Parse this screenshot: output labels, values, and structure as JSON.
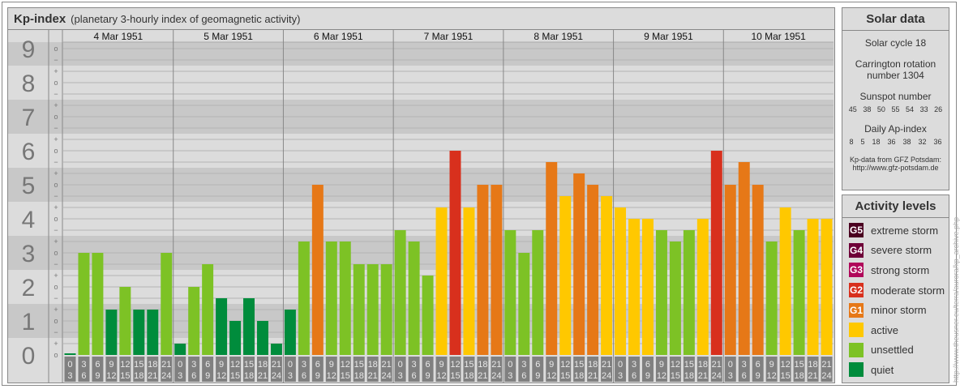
{
  "title": {
    "main": "Kp-index",
    "sub": "(planetary 3-hourly index of geomagnetic activity)"
  },
  "chart_data": {
    "type": "bar",
    "title": "Kp-index",
    "ylim": [
      0,
      9
    ],
    "y_tick_labels": [
      "0",
      "1",
      "2",
      "3",
      "4",
      "5",
      "6",
      "7",
      "8",
      "9"
    ],
    "sub_tick_labels": {
      "minus": "−",
      "zero": "o",
      "plus": "+"
    },
    "days": [
      "4 Mar 1951",
      "5 Mar 1951",
      "6 Mar 1951",
      "7 Mar 1951",
      "8 Mar 1951",
      "9 Mar 1951",
      "10 Mar 1951"
    ],
    "intervals": [
      [
        "0",
        "3"
      ],
      [
        "3",
        "6"
      ],
      [
        "6",
        "9"
      ],
      [
        "9",
        "12"
      ],
      [
        "12",
        "15"
      ],
      [
        "15",
        "18"
      ],
      [
        "18",
        "21"
      ],
      [
        "21",
        "24"
      ]
    ],
    "values": [
      [
        "0o",
        "3o",
        "3o",
        "1+",
        "2o",
        "1+",
        "1+",
        "3o"
      ],
      [
        "0+",
        "2o",
        "3-",
        "2-",
        "1o",
        "2-",
        "1o",
        "0+"
      ],
      [
        "1+",
        "3+",
        "5o",
        "3+",
        "3+",
        "3-",
        "3-",
        "3-"
      ],
      [
        "4-",
        "3+",
        "2+",
        "4+",
        "6o",
        "4+",
        "5o",
        "5o"
      ],
      [
        "4-",
        "3o",
        "4-",
        "6-",
        "5-",
        "5+",
        "5o",
        "5-"
      ],
      [
        "4+",
        "4o",
        "4o",
        "4-",
        "3+",
        "4-",
        "4o",
        "6o"
      ],
      [
        "5o",
        "6-",
        "5o",
        "3+",
        "4+",
        "4-",
        "4o",
        "4o"
      ]
    ]
  },
  "solar": {
    "heading": "Solar data",
    "cycle": "Solar cycle 18",
    "carrington1": "Carrington rotation",
    "carrington2": "number 1304",
    "sunspot_label": "Sunspot number",
    "sunspots": [
      "45",
      "38",
      "50",
      "55",
      "54",
      "33",
      "26"
    ],
    "ap_label": "Daily Ap-index",
    "ap": [
      "8",
      "5",
      "18",
      "36",
      "38",
      "32",
      "36"
    ],
    "source1": "Kp-data from GFZ Potsdam:",
    "source2": "http://www.gfz-potsdam.de"
  },
  "legend": {
    "heading": "Activity levels",
    "items": [
      {
        "code": "G5",
        "label": "extreme storm",
        "color": "#4a0020"
      },
      {
        "code": "G4",
        "label": "severe storm",
        "color": "#6e0038"
      },
      {
        "code": "G3",
        "label": "strong storm",
        "color": "#b0075a"
      },
      {
        "code": "G2",
        "label": "moderate storm",
        "color": "#d8301d"
      },
      {
        "code": "G1",
        "label": "minor storm",
        "color": "#e67817"
      },
      {
        "code": "",
        "label": "active",
        "color": "#ffc800"
      },
      {
        "code": "",
        "label": "unsettled",
        "color": "#7dc225"
      },
      {
        "code": "",
        "label": "quiet",
        "color": "#008c3c"
      }
    ]
  },
  "watermark": "http://www.theusner.eu/terra/aurora/kp_archive.php"
}
